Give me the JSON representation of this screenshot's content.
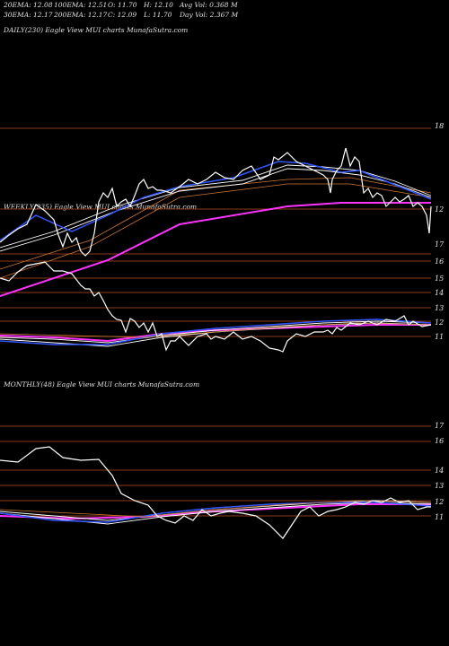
{
  "header": {
    "ema20": "20EMA: 12.08",
    "ema100": "100EMA: 12.51",
    "open": "O: 11.70",
    "high": "H: 12.10",
    "avg_vol": "Avg Vol: 0.368 M",
    "ema30": "30EMA: 12.17",
    "ema200": "200EMA: 12.17",
    "close": "C: 12.09",
    "low": "L: 11.70",
    "day_vol": "Day Vol: 2.367 M"
  },
  "colors": {
    "background": "#000000",
    "price": "#ffffff",
    "ema_short": "#3355ff",
    "ema_long": "#ff33ff",
    "grid": "#8b3a1a"
  },
  "chart_data": [
    {
      "type": "line",
      "title": "DAILY(230) Eagle  View  MUI charts MunafaSutra.com",
      "y_ticks": [
        "18",
        "12",
        "17"
      ],
      "series": [
        {
          "values": [
            12.0,
            12.05,
            12.1,
            12.0,
            11.95,
            12.1,
            12.3,
            12.25,
            12.4,
            12.2,
            12.0,
            12.3,
            12.5,
            12.55,
            12.6,
            12.6,
            12.7,
            12.8,
            12.85,
            12.9,
            12.95,
            13.0,
            13.1,
            13.2,
            13.25,
            13.3,
            13.1,
            12.6,
            12.9,
            12.8,
            12.5,
            12.6,
            12.4
          ]
        }
      ]
    },
    {
      "type": "line",
      "title": "WEEKLY(235) Eagle  View  MUI charts MunafaSutra.com",
      "y_ticks": [
        "16",
        "15",
        "14",
        "13",
        "12",
        "11"
      ],
      "series": [
        {
          "values": [
            15.5,
            15.6,
            15.9,
            16.0,
            15.7,
            15.2,
            14.9,
            14.2,
            13.4,
            12.8,
            12.7,
            11.9,
            11.6,
            11.8,
            11.6,
            11.5,
            11.3,
            11.0,
            11.4,
            11.8,
            11.9,
            11.9,
            12.0,
            12.1,
            12.0,
            11.9
          ]
        }
      ]
    },
    {
      "type": "line",
      "title": "MONTHLY(48) Eagle  View  MUI charts MunafaSutra.com",
      "y_ticks": [
        "17",
        "16",
        "14",
        "13",
        "12",
        "11"
      ],
      "series": [
        {
          "values": [
            15.4,
            15.4,
            15.7,
            15.6,
            15.3,
            15.4,
            15.0,
            14.0,
            13.1,
            12.6,
            12.3,
            11.8,
            11.6,
            11.8,
            11.6,
            11.5,
            11.2,
            10.8,
            11.5,
            11.8,
            12.0,
            12.0,
            12.1,
            12.0,
            11.9
          ]
        }
      ]
    }
  ]
}
